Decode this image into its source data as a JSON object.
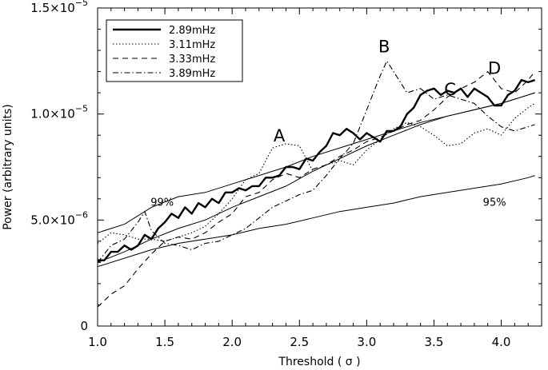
{
  "chart_data": {
    "type": "line",
    "title": "",
    "xlabel": "Threshold ( σ )",
    "ylabel": "Power (arbitrary units)",
    "xlim": [
      1.0,
      4.3
    ],
    "ylim": [
      0,
      1.5e-05
    ],
    "grid": false,
    "legend_position": "top-left",
    "x_ticks": [
      {
        "value": 1.0,
        "label": "1.0"
      },
      {
        "value": 1.5,
        "label": "1.5"
      },
      {
        "value": 2.0,
        "label": "2.0"
      },
      {
        "value": 2.5,
        "label": "2.5"
      },
      {
        "value": 3.0,
        "label": "3.0"
      },
      {
        "value": 3.5,
        "label": "3.5"
      },
      {
        "value": 4.0,
        "label": "4.0"
      }
    ],
    "y_ticks": [
      {
        "value": 0,
        "mantissa": "0",
        "exp": ""
      },
      {
        "value": 5e-06,
        "mantissa": "5.0×10",
        "exp": "−6"
      },
      {
        "value": 1e-05,
        "mantissa": "1.0×10",
        "exp": "−5"
      },
      {
        "value": 1.5e-05,
        "mantissa": "1.5×10",
        "exp": "−5"
      }
    ],
    "series": [
      {
        "name": "2.89mHz",
        "style": "solid-thick",
        "x": [
          1.0,
          1.05,
          1.1,
          1.15,
          1.2,
          1.25,
          1.3,
          1.35,
          1.4,
          1.45,
          1.5,
          1.55,
          1.6,
          1.65,
          1.7,
          1.75,
          1.8,
          1.85,
          1.9,
          1.95,
          2.0,
          2.05,
          2.1,
          2.15,
          2.2,
          2.25,
          2.3,
          2.35,
          2.4,
          2.45,
          2.5,
          2.55,
          2.6,
          2.65,
          2.7,
          2.75,
          2.8,
          2.85,
          2.9,
          2.95,
          3.0,
          3.05,
          3.1,
          3.15,
          3.2,
          3.25,
          3.3,
          3.35,
          3.4,
          3.45,
          3.5,
          3.55,
          3.6,
          3.65,
          3.7,
          3.75,
          3.8,
          3.85,
          3.9,
          3.95,
          4.0,
          4.05,
          4.1,
          4.15,
          4.2,
          4.25
        ],
        "values": [
          3.1e-06,
          3.1e-06,
          3.5e-06,
          3.5e-06,
          3.8e-06,
          3.6e-06,
          3.8e-06,
          4.3e-06,
          4.1e-06,
          4.6e-06,
          4.9e-06,
          5.3e-06,
          5.1e-06,
          5.6e-06,
          5.3e-06,
          5.8e-06,
          5.6e-06,
          6e-06,
          5.8e-06,
          6.3e-06,
          6.3e-06,
          6.5e-06,
          6.4e-06,
          6.6e-06,
          6.6e-06,
          7e-06,
          7e-06,
          7.1e-06,
          7.5e-06,
          7.5e-06,
          7.4e-06,
          7.9e-06,
          7.8e-06,
          8.2e-06,
          8.5e-06,
          9.1e-06,
          9e-06,
          9.3e-06,
          9.1e-06,
          8.8e-06,
          9.1e-06,
          8.9e-06,
          8.7e-06,
          9.2e-06,
          9.2e-06,
          9.4e-06,
          1e-05,
          1.03e-05,
          1.09e-05,
          1.11e-05,
          1.12e-05,
          1.09e-05,
          1.11e-05,
          1.1e-05,
          1.12e-05,
          1.08e-05,
          1.12e-05,
          1.1e-05,
          1.08e-05,
          1.04e-05,
          1.04e-05,
          1.09e-05,
          1.11e-05,
          1.16e-05,
          1.15e-05,
          1.16e-05
        ]
      },
      {
        "name": "3.11mHz",
        "style": "dotted",
        "x": [
          1.0,
          1.1,
          1.2,
          1.3,
          1.4,
          1.5,
          1.6,
          1.7,
          1.8,
          1.9,
          2.0,
          2.1,
          2.2,
          2.3,
          2.4,
          2.5,
          2.6,
          2.7,
          2.8,
          2.9,
          3.0,
          3.1,
          3.2,
          3.3,
          3.4,
          3.5,
          3.6,
          3.7,
          3.8,
          3.9,
          4.0,
          4.1,
          4.2,
          4.25
        ],
        "values": [
          3.9e-06,
          4.4e-06,
          4.3e-06,
          4.1e-06,
          4.1e-06,
          4e-06,
          4.2e-06,
          4.4e-06,
          4.7e-06,
          5.3e-06,
          6e-06,
          6.9e-06,
          7.2e-06,
          8.4e-06,
          8.6e-06,
          8.5e-06,
          7.3e-06,
          7.6e-06,
          7.8e-06,
          7.6e-06,
          8.3e-06,
          8.8e-06,
          9.3e-06,
          9.6e-06,
          9.4e-06,
          9e-06,
          8.5e-06,
          8.6e-06,
          9.1e-06,
          9.3e-06,
          9e-06,
          9.8e-06,
          1.03e-05,
          1.05e-05
        ]
      },
      {
        "name": "3.33mHz",
        "style": "dashed",
        "x": [
          1.0,
          1.1,
          1.2,
          1.3,
          1.4,
          1.5,
          1.6,
          1.7,
          1.8,
          1.9,
          2.0,
          2.1,
          2.2,
          2.3,
          2.4,
          2.5,
          2.6,
          2.7,
          2.8,
          2.9,
          3.0,
          3.1,
          3.2,
          3.3,
          3.4,
          3.5,
          3.6,
          3.7,
          3.8,
          3.9,
          4.0,
          4.1,
          4.2,
          4.25
        ],
        "values": [
          9e-07,
          1.5e-06,
          1.9e-06,
          2.7e-06,
          3.4e-06,
          4e-06,
          4.2e-06,
          4.1e-06,
          4.4e-06,
          4.9e-06,
          5.3e-06,
          6.1e-06,
          6.3e-06,
          6.9e-06,
          7.2e-06,
          7e-06,
          7.4e-06,
          7.6e-06,
          8e-06,
          8.3e-06,
          8.7e-06,
          8.9e-06,
          9.2e-06,
          9.5e-06,
          9.7e-06,
          1.02e-05,
          1.08e-05,
          1.12e-05,
          1.15e-05,
          1.2e-05,
          1.12e-05,
          1.1e-05,
          1.16e-05,
          1.2e-05
        ]
      },
      {
        "name": "3.89mHz",
        "style": "dash-dot",
        "x": [
          1.0,
          1.1,
          1.2,
          1.3,
          1.35,
          1.4,
          1.5,
          1.6,
          1.7,
          1.8,
          1.9,
          2.0,
          2.1,
          2.2,
          2.3,
          2.4,
          2.5,
          2.6,
          2.7,
          2.8,
          2.9,
          3.0,
          3.05,
          3.1,
          3.15,
          3.2,
          3.3,
          3.4,
          3.5,
          3.6,
          3.7,
          3.8,
          3.9,
          4.0,
          4.1,
          4.2,
          4.25
        ],
        "values": [
          3e-06,
          3.8e-06,
          4.1e-06,
          4.9e-06,
          5.4e-06,
          4.5e-06,
          3.9e-06,
          3.8e-06,
          3.6e-06,
          3.9e-06,
          4e-06,
          4.3e-06,
          4.6e-06,
          5.1e-06,
          5.6e-06,
          5.9e-06,
          6.2e-06,
          6.4e-06,
          7.1e-06,
          7.9e-06,
          8.6e-06,
          1.02e-05,
          1.1e-05,
          1.18e-05,
          1.25e-05,
          1.2e-05,
          1.1e-05,
          1.12e-05,
          1.07e-05,
          1.09e-05,
          1.07e-05,
          1.05e-05,
          9.9e-06,
          9.4e-06,
          9.2e-06,
          9.4e-06,
          9.5e-06
        ]
      }
    ],
    "significance_lines": [
      {
        "label": "99%",
        "x": [
          1.0,
          1.2,
          1.4,
          1.6,
          1.8,
          2.0,
          2.2,
          2.4,
          2.6,
          2.8,
          3.0,
          3.2,
          3.4,
          3.6,
          3.8,
          4.0,
          4.2,
          4.25
        ],
        "values": [
          4.4e-06,
          4.8e-06,
          5.6e-06,
          6.1e-06,
          6.3e-06,
          6.7e-06,
          7.1e-06,
          7.5e-06,
          8e-06,
          8.4e-06,
          8.8e-06,
          9.2e-06,
          9.6e-06,
          9.9e-06,
          1.02e-05,
          1.05e-05,
          1.09e-05,
          1.1e-05
        ]
      },
      {
        "label": "95%",
        "x": [
          1.0,
          1.2,
          1.4,
          1.6,
          1.8,
          2.0,
          2.2,
          2.4,
          2.6,
          2.8,
          3.0,
          3.2,
          3.4,
          3.6,
          3.8,
          4.0,
          4.2,
          4.25
        ],
        "values": [
          2.8e-06,
          3.2e-06,
          3.6e-06,
          3.9e-06,
          4.1e-06,
          4.3e-06,
          4.6e-06,
          4.8e-06,
          5.1e-06,
          5.4e-06,
          5.6e-06,
          5.8e-06,
          6.1e-06,
          6.3e-06,
          6.5e-06,
          6.7e-06,
          7e-06,
          7.1e-06
        ]
      },
      {
        "label": "",
        "x": [
          1.0,
          1.2,
          1.4,
          1.6,
          1.8,
          2.0,
          2.2,
          2.4,
          2.6,
          2.8,
          3.0,
          3.2,
          3.4,
          3.6,
          3.8,
          4.0,
          4.2,
          4.25
        ],
        "values": [
          3e-06,
          3.5e-06,
          4.1e-06,
          4.6e-06,
          5e-06,
          5.6e-06,
          6.1e-06,
          6.6e-06,
          7.3e-06,
          7.9e-06,
          8.5e-06,
          9e-06,
          9.5e-06,
          9.9e-06,
          1.02e-05,
          1.05e-05,
          1.09e-05,
          1.1e-05
        ]
      }
    ],
    "significance_label_positions": [
      {
        "label": "99%",
        "x": 1.48,
        "y": 5.6e-06
      },
      {
        "label": "95%",
        "x": 3.95,
        "y": 5.6e-06
      }
    ],
    "annotations": [
      {
        "text": "A",
        "x": 2.35,
        "y": 8.7e-06
      },
      {
        "text": "B",
        "x": 3.13,
        "y": 1.29e-05
      },
      {
        "text": "C",
        "x": 3.62,
        "y": 1.09e-05
      },
      {
        "text": "D",
        "x": 3.95,
        "y": 1.19e-05
      }
    ]
  }
}
